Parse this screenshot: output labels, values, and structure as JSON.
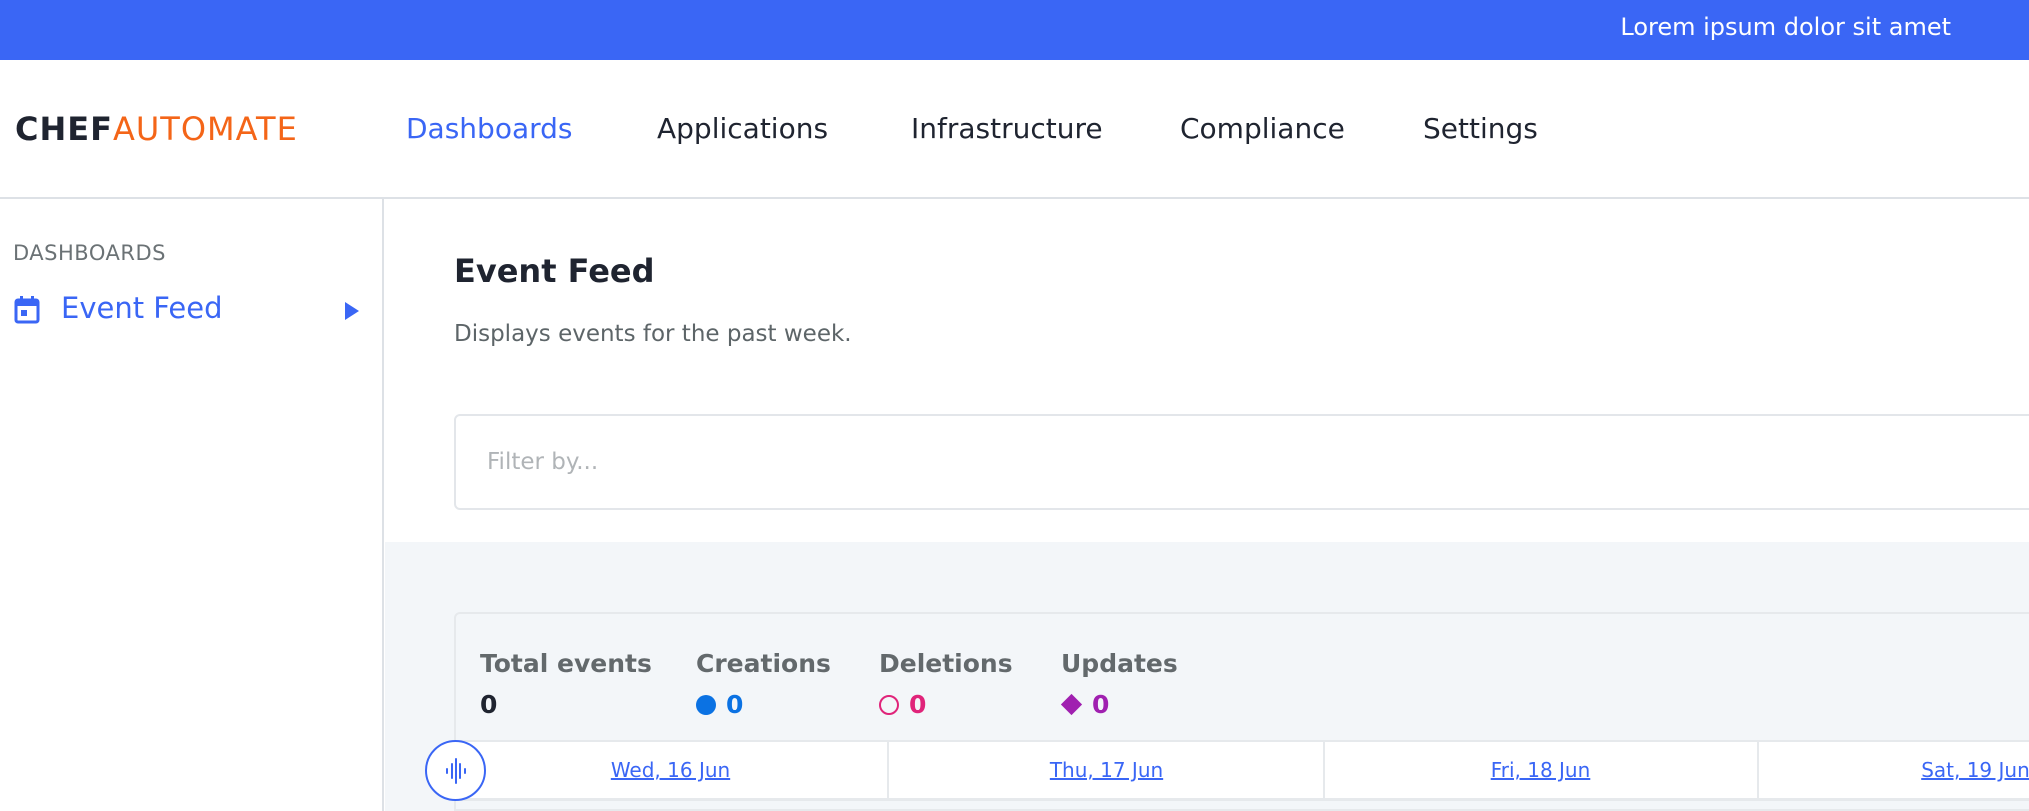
{
  "banner": {
    "text": "Lorem ipsum dolor sit amet"
  },
  "logo": {
    "part1": "CHEF",
    "part2": "AUTOMATE"
  },
  "nav": {
    "items": [
      {
        "label": "Dashboards",
        "active": true
      },
      {
        "label": "Applications"
      },
      {
        "label": "Infrastructure"
      },
      {
        "label": "Compliance"
      },
      {
        "label": "Settings"
      }
    ]
  },
  "sidebar": {
    "heading": "DASHBOARDS",
    "items": [
      {
        "label": "Event Feed",
        "icon": "calendar-icon"
      }
    ]
  },
  "main": {
    "title": "Event Feed",
    "subtitle": "Displays events for the past week.",
    "filter": {
      "placeholder": "Filter by...",
      "value": ""
    },
    "stats": [
      {
        "label": "Total events",
        "value": "0",
        "color": "#1f2430"
      },
      {
        "label": "Creations",
        "value": "0",
        "color": "#0b72e3",
        "icon": "filled-circle-icon"
      },
      {
        "label": "Deletions",
        "value": "0",
        "color": "#e0247a",
        "icon": "hollow-circle-icon"
      },
      {
        "label": "Updates",
        "value": "0",
        "color": "#a020b0",
        "icon": "diamond-icon"
      }
    ],
    "dates": [
      "Wed, 16 Jun",
      "Thu, 17 Jun",
      "Fri, 18 Jun",
      "Sat, 19 Jun"
    ]
  },
  "colors": {
    "accent": "#3a66f5",
    "logo_orange": "#f46518"
  }
}
